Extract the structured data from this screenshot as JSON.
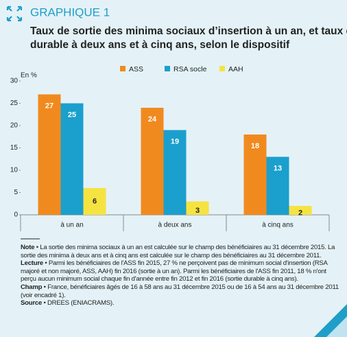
{
  "chart_data": {
    "type": "bar",
    "label": "GRAPHIQUE 1",
    "title": "Taux de sortie des minima sociaux d’insertion à un an, et taux de sortie durable à deux ans et à cinq ans, selon le dispositif",
    "y_label": "En %",
    "categories": [
      "à un an",
      "à deux ans",
      "à cinq ans"
    ],
    "series": [
      {
        "name": "ASS",
        "color": "#f18a1e",
        "values": [
          27,
          24,
          18
        ]
      },
      {
        "name": "RSA socle",
        "color": "#1b9fcd",
        "values": [
          25,
          19,
          13
        ]
      },
      {
        "name": "AAH",
        "color": "#f5e341",
        "values": [
          6,
          3,
          2
        ]
      }
    ],
    "ylim": [
      0,
      30
    ],
    "yticks": [
      0,
      5,
      10,
      15,
      20,
      25,
      30
    ],
    "grid": false,
    "legend": "top"
  },
  "notes": [
    {
      "label": "Note",
      "text": " • La sortie des minima sociaux à un an est calculée sur le champ des bénéficiaires au 31 décembre 2015. La sortie des minima à deux ans et à cinq ans est calculée sur le champ des bénéficiaires au 31 décembre 2011."
    },
    {
      "label": "Lecture",
      "text": " • Parmi les bénéficiaires de l'ASS fin 2015, 27 % ne perçoivent pas de minimum social d'insertion (RSA majoré et non majoré, ASS, AAH) fin 2016 (sortie à un an). Parmi les bénéficiaires de l'ASS fin 2011, 18 % n'ont perçu aucun minimum social chaque fin d'année entre fin 2012 et fin 2016 (sortie durable à cinq ans)."
    },
    {
      "label": "Champ",
      "text": " • France, bénéficiaires âgés de 16 à 58 ans au 31 décembre 2015 ou de 16 à 54 ans au 31 décembre 2011 (voir encadré 1)."
    },
    {
      "label": "Source",
      "text": " • DREES (ENIACRAMS)."
    }
  ]
}
